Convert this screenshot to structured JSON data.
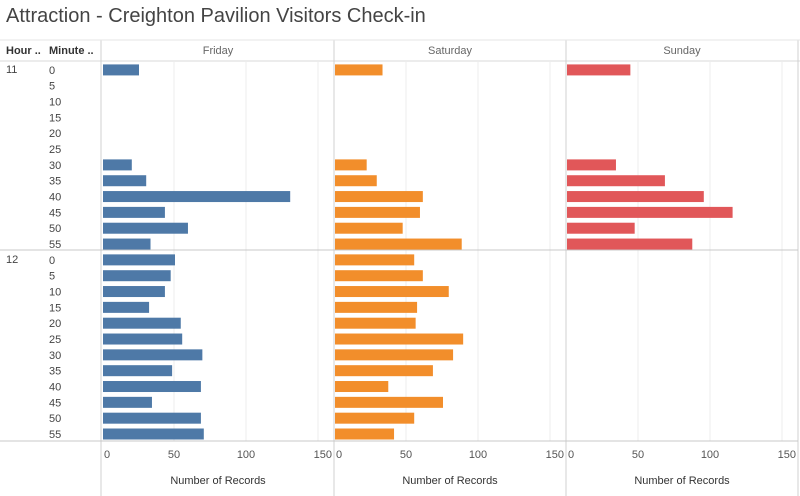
{
  "title": "Attraction - Creighton Pavilion Visitors Check-in",
  "headers": {
    "hour": "Hour ..",
    "minute": "Minute .."
  },
  "chart_data": {
    "type": "bar",
    "orientation": "horizontal",
    "title": "Attraction - Creighton Pavilion Visitors Check-in",
    "row_dimensions": [
      "Hour ..",
      "Minute .."
    ],
    "hours": [
      {
        "hour": "11",
        "minutes": [
          "0",
          "5",
          "10",
          "15",
          "20",
          "25",
          "30",
          "35",
          "40",
          "45",
          "50",
          "55"
        ]
      },
      {
        "hour": "12",
        "minutes": [
          "0",
          "5",
          "10",
          "15",
          "20",
          "25",
          "30",
          "35",
          "40",
          "45",
          "50",
          "55"
        ]
      }
    ],
    "xlabel": "Number of Records",
    "xlim": [
      0,
      150
    ],
    "xticks": [
      "0",
      "50",
      "100",
      "150"
    ],
    "gridlines": true,
    "series": [
      {
        "name": "Friday",
        "color": "#4e79a7",
        "values": [
          25,
          null,
          null,
          null,
          null,
          null,
          20,
          30,
          130,
          43,
          59,
          33,
          50,
          47,
          43,
          32,
          54,
          55,
          69,
          48,
          68,
          34,
          68,
          70
        ]
      },
      {
        "name": "Saturday",
        "color": "#f28e2b",
        "values": [
          33,
          null,
          null,
          null,
          null,
          null,
          22,
          29,
          61,
          59,
          47,
          88,
          55,
          61,
          79,
          57,
          56,
          89,
          82,
          68,
          37,
          75,
          55,
          41
        ]
      },
      {
        "name": "Sunday",
        "color": "#e15759",
        "values": [
          44,
          null,
          null,
          null,
          null,
          null,
          34,
          68,
          95,
          115,
          47,
          87,
          null,
          null,
          null,
          null,
          null,
          null,
          null,
          null,
          null,
          null,
          null,
          null
        ]
      }
    ]
  }
}
